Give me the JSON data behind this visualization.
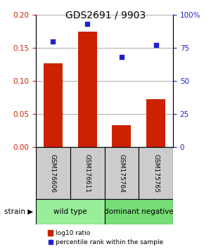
{
  "title": "GDS2691 / 9903",
  "samples": [
    "GSM176606",
    "GSM176611",
    "GSM175764",
    "GSM175765"
  ],
  "log10_ratio": [
    0.127,
    0.175,
    0.033,
    0.072
  ],
  "percentile_rank": [
    80,
    93,
    68,
    77
  ],
  "bar_color": "#cc2200",
  "dot_color": "#2222cc",
  "left_ylim": [
    0,
    0.2
  ],
  "right_ylim": [
    0,
    100
  ],
  "left_yticks": [
    0,
    0.05,
    0.1,
    0.15,
    0.2
  ],
  "right_yticks": [
    0,
    25,
    50,
    75,
    100
  ],
  "right_yticklabels": [
    "0",
    "25",
    "50",
    "75",
    "100%"
  ],
  "groups": [
    {
      "label": "wild type",
      "samples": [
        0,
        1
      ],
      "color": "#99ee99"
    },
    {
      "label": "dominant negative",
      "samples": [
        2,
        3
      ],
      "color": "#77dd77"
    }
  ],
  "strain_label": "strain",
  "legend_bar_label": "log10 ratio",
  "legend_dot_label": "percentile rank within the sample",
  "bg_color": "#ffffff",
  "sample_box_color": "#cccccc",
  "title_fontsize": 10,
  "tick_fontsize": 7.5,
  "sample_fontsize": 6.5,
  "group_fontsize": 7.5,
  "legend_fontsize": 6.5
}
